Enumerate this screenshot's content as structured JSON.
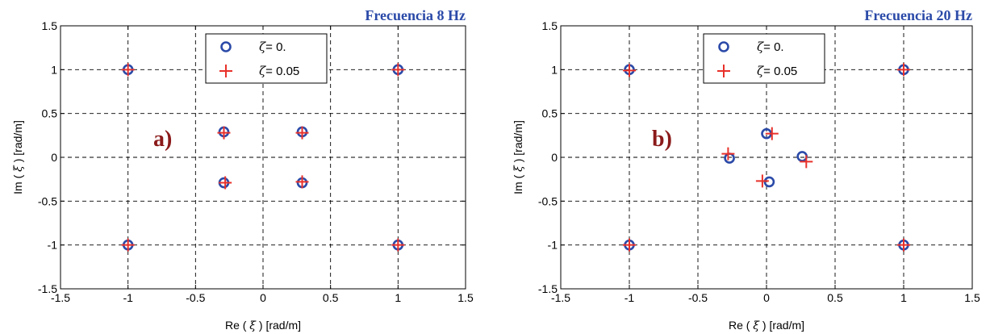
{
  "chart_data": [
    {
      "type": "scatter",
      "title": "Frecuencia 8  Hz",
      "panel_label": "a)",
      "xlabel": {
        "pre": "Re ( ",
        "sym": "ξ",
        "post": " ) [rad/m]"
      },
      "ylabel": {
        "pre": "Im ( ",
        "sym": "ξ",
        "post": " ) [rad/m]"
      },
      "xlim": [
        -1.5,
        1.5
      ],
      "ylim": [
        -1.5,
        1.5
      ],
      "xticks": [
        "-1.5",
        "-1",
        "-0.5",
        "0",
        "0.5",
        "1",
        "1.5"
      ],
      "yticks": [
        "-1.5",
        "-1",
        "-0.5",
        "0",
        "0.5",
        "1",
        "1.5"
      ],
      "grid": true,
      "legend_position": "top",
      "series": [
        {
          "name": "= 0.",
          "marker": "circle",
          "color": "#2b4aa8",
          "points": [
            [
              -1,
              1
            ],
            [
              1,
              1
            ],
            [
              -1,
              -1
            ],
            [
              1,
              -1
            ],
            [
              -0.29,
              0.29
            ],
            [
              0.29,
              0.29
            ],
            [
              -0.29,
              -0.29
            ],
            [
              0.29,
              -0.29
            ]
          ]
        },
        {
          "name": "= 0.05",
          "marker": "plus",
          "color": "#e8312a",
          "points": [
            [
              -1,
              1
            ],
            [
              1,
              1
            ],
            [
              -1,
              -1
            ],
            [
              1,
              -1
            ],
            [
              -0.29,
              0.28
            ],
            [
              0.29,
              0.28
            ],
            [
              -0.28,
              -0.29
            ],
            [
              0.29,
              -0.28
            ]
          ]
        }
      ]
    },
    {
      "type": "scatter",
      "title": "Frecuencia 20 Hz",
      "panel_label": "b)",
      "xlabel": {
        "pre": "Re ( ",
        "sym": "ξ",
        "post": " ) [rad/m]"
      },
      "ylabel": {
        "pre": "Im ( ",
        "sym": "ξ",
        "post": " ) [rad/m]"
      },
      "xlim": [
        -1.5,
        1.5
      ],
      "ylim": [
        -1.5,
        1.5
      ],
      "xticks": [
        "-1.5",
        "-1",
        "-0.5",
        "0",
        "0.5",
        "1",
        "1.5"
      ],
      "yticks": [
        "-1.5",
        "-1",
        "-0.5",
        "0",
        "0.5",
        "1",
        "1.5"
      ],
      "grid": true,
      "legend_position": "top",
      "series": [
        {
          "name": "= 0.",
          "marker": "circle",
          "color": "#2b4aa8",
          "points": [
            [
              -1,
              1
            ],
            [
              1,
              1
            ],
            [
              -1,
              -1
            ],
            [
              1,
              -1
            ],
            [
              0,
              0.27
            ],
            [
              -0.27,
              -0.01
            ],
            [
              0.26,
              0.01
            ],
            [
              0.02,
              -0.28
            ]
          ]
        },
        {
          "name": "= 0.05",
          "marker": "plus",
          "color": "#e8312a",
          "points": [
            [
              -1,
              0.99
            ],
            [
              1,
              1
            ],
            [
              -1,
              -1
            ],
            [
              1,
              -1
            ],
            [
              0.04,
              0.27
            ],
            [
              -0.28,
              0.04
            ],
            [
              0.29,
              -0.05
            ],
            [
              -0.03,
              -0.27
            ]
          ]
        }
      ]
    }
  ],
  "legend_symbol": "ζ",
  "colors": {
    "title": "#2b4aa8",
    "panel_label": "#8b1a1a",
    "grid": "#000000"
  }
}
